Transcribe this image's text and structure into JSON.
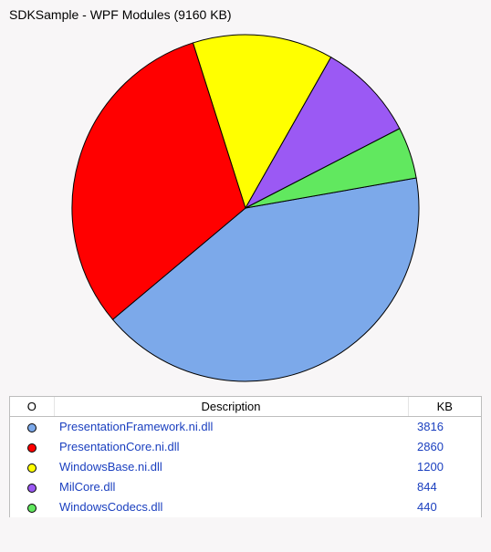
{
  "title": "SDKSample - WPF Modules (9160 KB)",
  "chart": {
    "type": "pie",
    "radius": 190,
    "stroke": "#000000",
    "stroke_width": 1,
    "start_angle_deg": -10,
    "slices": [
      {
        "value": 3816,
        "color": "#7ca9ea"
      },
      {
        "value": 2860,
        "color": "#ff0000"
      },
      {
        "value": 1200,
        "color": "#ffff00"
      },
      {
        "value": 844,
        "color": "#9b59f4"
      },
      {
        "value": 440,
        "color": "#61e85f"
      }
    ]
  },
  "table": {
    "columns": {
      "swatch": "O",
      "description": "Description",
      "kb": "KB"
    },
    "rows": [
      {
        "color": "#7ca9ea",
        "description": "PresentationFramework.ni.dll",
        "kb": "3816"
      },
      {
        "color": "#ff0000",
        "description": "PresentationCore.ni.dll",
        "kb": "2860"
      },
      {
        "color": "#ffff00",
        "description": "WindowsBase.ni.dll",
        "kb": "1200"
      },
      {
        "color": "#9b59f4",
        "description": "MilCore.dll",
        "kb": "844"
      },
      {
        "color": "#61e85f",
        "description": "WindowsCodecs.dll",
        "kb": "440"
      }
    ]
  },
  "colors": {
    "background": "#f8f6f7",
    "panel_bg": "#ffffff",
    "border": "#bdbdbd",
    "link": "#1a3fbf"
  }
}
